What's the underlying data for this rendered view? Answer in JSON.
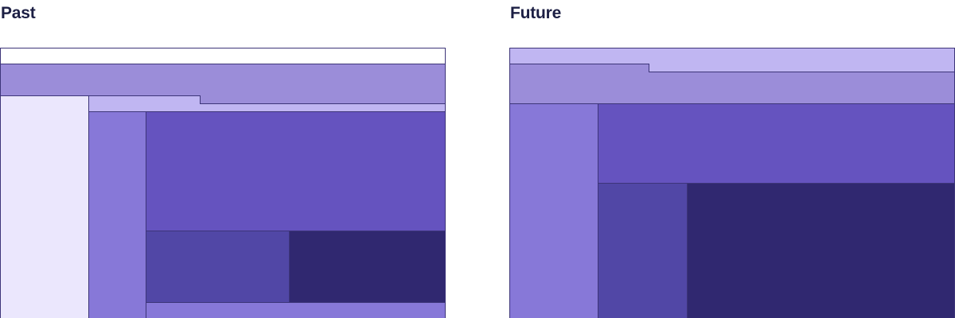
{
  "past": {
    "label": "Past"
  },
  "future": {
    "label": "Future"
  },
  "colors": {
    "white": "#ffffff",
    "lavender": "#ebe7fd",
    "light_purple": "#c0b6f2",
    "muted_purple": "#9b8dd9",
    "medium_purple": "#8778d8",
    "violet": "#6553bf",
    "deep_violet": "#5147a6",
    "dark_navy": "#302870",
    "heading": "#1c1f44",
    "stroke": "#3d3579"
  }
}
